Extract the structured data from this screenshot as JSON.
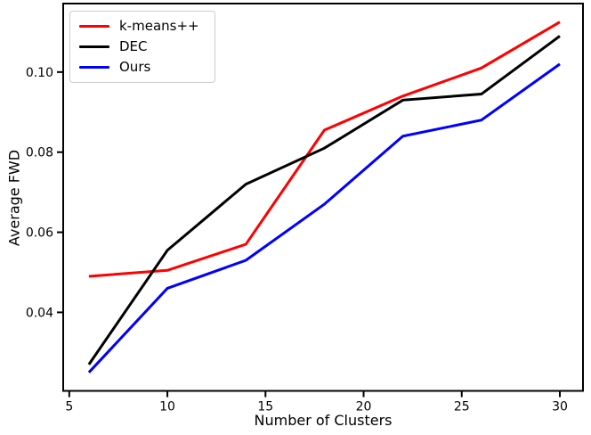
{
  "figure": {
    "background": "#ffffff",
    "spine_color": "#000000"
  },
  "chart_data": {
    "type": "line",
    "title": "",
    "xlabel": "Number of Clusters",
    "ylabel": "Average FWD",
    "x": [
      6,
      10,
      14,
      18,
      22,
      26,
      30
    ],
    "series": [
      {
        "name": "k-means++",
        "color": "#ff0000",
        "values": [
          0.049,
          0.0505,
          0.057,
          0.0855,
          0.094,
          0.101,
          0.1125
        ]
      },
      {
        "name": "DEC",
        "color": "#000000",
        "values": [
          0.027,
          0.0555,
          0.072,
          0.081,
          0.093,
          0.0945,
          0.109
        ]
      },
      {
        "name": "Ours",
        "color": "#0000ff",
        "values": [
          0.025,
          0.046,
          0.053,
          0.067,
          0.084,
          0.088,
          0.102
        ]
      }
    ],
    "xticks": {
      "values": [
        5,
        10,
        15,
        20,
        25,
        30
      ],
      "labels": [
        "5",
        "10",
        "15",
        "20",
        "25",
        "30"
      ]
    },
    "yticks": {
      "values": [
        0.04,
        0.06,
        0.08,
        0.1
      ],
      "labels": [
        "0.04",
        "0.06",
        "0.08",
        "0.10"
      ]
    },
    "xlim": [
      4.69,
      31.18
    ],
    "ylim": [
      0.0204,
      0.1171
    ],
    "grid": false,
    "line_width": 3,
    "legend": {
      "position": "upper-left",
      "entries": [
        "k-means++",
        "DEC",
        "Ours"
      ]
    }
  }
}
